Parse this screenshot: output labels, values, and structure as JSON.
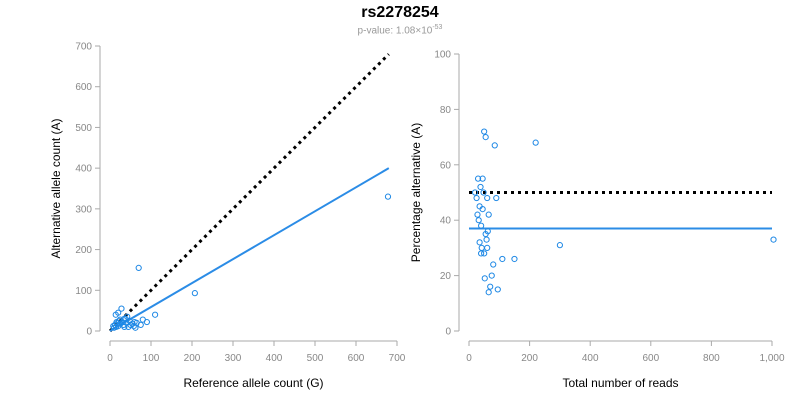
{
  "header": {
    "title": "rs2278254",
    "pvalue_prefix": "p-value: 1.08×10",
    "pvalue_exponent": "-53"
  },
  "colors": {
    "points": "#1e88e5",
    "fit_line": "#2b8ce6",
    "reference": "#000000",
    "axis": "#aaaaaa"
  },
  "chart_data": [
    {
      "type": "scatter",
      "xlabel": "Reference allele count (G)",
      "ylabel": "Alternative allele count (A)",
      "xlim": [
        0,
        700
      ],
      "ylim": [
        0,
        700
      ],
      "xticks": [
        0,
        100,
        200,
        300,
        400,
        500,
        600,
        700
      ],
      "yticks": [
        0,
        100,
        200,
        300,
        400,
        500,
        600,
        700
      ],
      "xtick_labels": [
        "0",
        "100",
        "200",
        "300",
        "400",
        "500",
        "600",
        "700"
      ],
      "ytick_labels": [
        "0",
        "100",
        "200",
        "300",
        "400",
        "500",
        "600",
        "700"
      ],
      "points": [
        [
          8,
          12
        ],
        [
          12,
          15
        ],
        [
          15,
          10
        ],
        [
          18,
          20
        ],
        [
          20,
          12
        ],
        [
          22,
          25
        ],
        [
          25,
          18
        ],
        [
          14,
          40
        ],
        [
          20,
          45
        ],
        [
          28,
          55
        ],
        [
          30,
          22
        ],
        [
          33,
          15
        ],
        [
          35,
          10
        ],
        [
          38,
          30
        ],
        [
          40,
          20
        ],
        [
          42,
          35
        ],
        [
          45,
          10
        ],
        [
          48,
          25
        ],
        [
          50,
          15
        ],
        [
          55,
          18
        ],
        [
          58,
          12
        ],
        [
          60,
          22
        ],
        [
          62,
          8
        ],
        [
          65,
          20
        ],
        [
          75,
          15
        ],
        [
          80,
          28
        ],
        [
          90,
          22
        ],
        [
          110,
          40
        ],
        [
          35,
          30
        ],
        [
          25,
          28
        ],
        [
          70,
          155
        ],
        [
          207,
          93
        ],
        [
          678,
          330
        ],
        [
          10,
          8
        ],
        [
          16,
          22
        ]
      ],
      "reference_line": [
        [
          0,
          0
        ],
        [
          680,
          680
        ]
      ],
      "fit_line": [
        [
          0,
          0
        ],
        [
          680,
          400
        ]
      ]
    },
    {
      "type": "scatter",
      "xlabel": "Total number of reads",
      "ylabel": "Percentage alternative (A)",
      "xlim": [
        0,
        1000
      ],
      "ylim": [
        0,
        100
      ],
      "xticks": [
        0,
        200,
        400,
        600,
        800,
        1000
      ],
      "yticks": [
        0,
        20,
        40,
        60,
        80,
        100
      ],
      "xtick_labels": [
        "0",
        "200",
        "400",
        "600",
        "800",
        "1,000"
      ],
      "ytick_labels": [
        "0",
        "20",
        "40",
        "60",
        "80",
        "100"
      ],
      "points": [
        [
          20,
          50
        ],
        [
          25,
          48
        ],
        [
          30,
          55
        ],
        [
          35,
          45
        ],
        [
          28,
          42
        ],
        [
          32,
          40
        ],
        [
          38,
          52
        ],
        [
          40,
          38
        ],
        [
          45,
          55
        ],
        [
          50,
          72
        ],
        [
          55,
          70
        ],
        [
          48,
          50
        ],
        [
          60,
          48
        ],
        [
          65,
          42
        ],
        [
          42,
          30
        ],
        [
          50,
          28
        ],
        [
          55,
          35
        ],
        [
          58,
          33
        ],
        [
          62,
          36
        ],
        [
          45,
          44
        ],
        [
          52,
          19
        ],
        [
          60,
          30
        ],
        [
          65,
          14
        ],
        [
          70,
          16
        ],
        [
          75,
          20
        ],
        [
          80,
          24
        ],
        [
          85,
          67
        ],
        [
          90,
          48
        ],
        [
          95,
          15
        ],
        [
          110,
          26
        ],
        [
          150,
          26
        ],
        [
          220,
          68
        ],
        [
          300,
          31
        ],
        [
          1005,
          33
        ],
        [
          40,
          28
        ],
        [
          35,
          32
        ]
      ],
      "reference_line": [
        [
          0,
          50
        ],
        [
          1000,
          50
        ]
      ],
      "fit_line": [
        [
          0,
          37
        ],
        [
          1000,
          37
        ]
      ]
    }
  ]
}
